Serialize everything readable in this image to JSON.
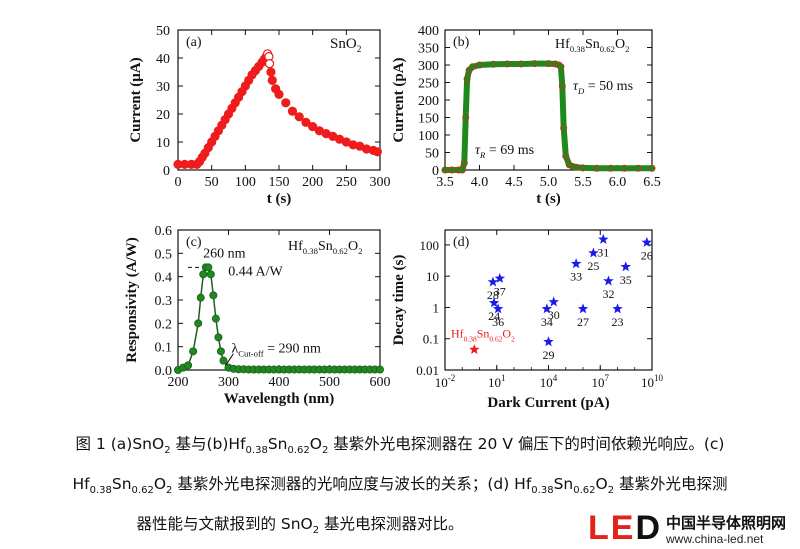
{
  "colors": {
    "red": "#ee1c1c",
    "green": "#1e8a1e",
    "darkgreen": "#1b5e20",
    "blue": "#1a1aee",
    "logo_red": "#e2231a"
  },
  "chart_data": [
    {
      "id": "a",
      "type": "scatter",
      "panel_label": "(a)",
      "series_label": "SnO2",
      "xlabel": "t (s)",
      "ylabel": "Current (μA)",
      "xlim": [
        0,
        300
      ],
      "ylim": [
        0,
        50
      ],
      "xticks": [
        0,
        50,
        100,
        150,
        200,
        250,
        300
      ],
      "yticks": [
        0,
        10,
        20,
        30,
        40,
        50
      ],
      "series": [
        {
          "color": "red",
          "x": [
            0,
            10,
            20,
            28,
            32,
            36,
            40,
            45,
            50,
            55,
            60,
            65,
            70,
            75,
            80,
            85,
            90,
            95,
            100,
            105,
            110,
            115,
            120,
            125,
            128,
            131,
            133,
            135,
            136,
            138,
            140,
            145,
            150,
            160,
            170,
            180,
            190,
            200,
            210,
            220,
            230,
            240,
            250,
            260,
            270,
            280,
            290,
            296
          ],
          "y": [
            2,
            2,
            2,
            2,
            3,
            4.5,
            6,
            8,
            10,
            12,
            14,
            16,
            18,
            20,
            22,
            24,
            26,
            28,
            30,
            32,
            34,
            35.5,
            37,
            38.5,
            39.5,
            40.5,
            41.5,
            40.5,
            38,
            35,
            32,
            29,
            27,
            24,
            21,
            19,
            17,
            15.5,
            14,
            13,
            12,
            11,
            10,
            9,
            8.5,
            7.5,
            7,
            6.5
          ]
        }
      ]
    },
    {
      "id": "b",
      "type": "scatter",
      "panel_label": "(b)",
      "series_label": "Hf0.38Sn0.62O2",
      "annotations": [
        "τD = 50 ms",
        "τR = 69 ms"
      ],
      "xlabel": "t (s)",
      "ylabel": "Current (pA)",
      "xlim": [
        3.5,
        6.5
      ],
      "ylim": [
        0,
        400
      ],
      "xticks": [
        3.5,
        4.0,
        4.5,
        5.0,
        5.5,
        6.0,
        6.5
      ],
      "yticks": [
        0,
        50,
        100,
        150,
        200,
        250,
        300,
        350,
        400
      ],
      "series": [
        {
          "color": "green",
          "x": [
            3.5,
            3.6,
            3.7,
            3.75,
            3.78,
            3.8,
            3.82,
            3.85,
            3.9,
            4.0,
            4.2,
            4.4,
            4.6,
            4.8,
            5.0,
            5.1,
            5.15,
            5.18,
            5.2,
            5.22,
            5.25,
            5.3,
            5.35,
            5.4,
            5.5,
            5.7,
            5.9,
            6.1,
            6.3,
            6.5
          ],
          "y": [
            0,
            0,
            0,
            0,
            20,
            150,
            260,
            285,
            295,
            300,
            302,
            303,
            303,
            304,
            304,
            303,
            300,
            295,
            240,
            120,
            40,
            15,
            10,
            8,
            6,
            5,
            5,
            5,
            5,
            5
          ]
        }
      ]
    },
    {
      "id": "c",
      "type": "line",
      "panel_label": "(c)",
      "series_label": "Hf0.38Sn0.62O2",
      "annotations": [
        "260 nm",
        "0.44 A/W",
        "λCut-off = 290 nm"
      ],
      "xlabel": "Wavelength (nm)",
      "ylabel": "Responsivity (A/W)",
      "xlim": [
        200,
        600
      ],
      "ylim": [
        0,
        0.6
      ],
      "xticks": [
        200,
        300,
        400,
        500,
        600
      ],
      "yticks": [
        0.0,
        0.1,
        0.2,
        0.3,
        0.4,
        0.5,
        0.6
      ],
      "series": [
        {
          "color": "green",
          "x": [
            200,
            210,
            220,
            230,
            240,
            245,
            250,
            255,
            260,
            265,
            270,
            275,
            280,
            285,
            290,
            300,
            310,
            320,
            330,
            340,
            350,
            360,
            370,
            380,
            390,
            400,
            410,
            420,
            430,
            440,
            450,
            460,
            470,
            480,
            490,
            500,
            510,
            520,
            530,
            540,
            550,
            560,
            570,
            580,
            590,
            600
          ],
          "y": [
            0.0,
            0.01,
            0.02,
            0.08,
            0.2,
            0.31,
            0.41,
            0.44,
            0.44,
            0.41,
            0.32,
            0.22,
            0.14,
            0.08,
            0.04,
            0.01,
            0.005,
            0.003,
            0.003,
            0.002,
            0.002,
            0.002,
            0.002,
            0.002,
            0.002,
            0.002,
            0.002,
            0.002,
            0.002,
            0.002,
            0.002,
            0.002,
            0.002,
            0.002,
            0.002,
            0.002,
            0.002,
            0.002,
            0.002,
            0.002,
            0.002,
            0.002,
            0.002,
            0.002,
            0.002,
            0.002
          ]
        }
      ]
    },
    {
      "id": "d",
      "type": "scatter",
      "panel_label": "(d)",
      "xlabel": "Dark Current (pA)",
      "ylabel": "Decay time (s)",
      "xscale": "log",
      "yscale": "log",
      "xlim": [
        0.01,
        10000000000
      ],
      "ylim": [
        0.01,
        300
      ],
      "xtick_labels": [
        "10-2",
        "101",
        "104",
        "107",
        "1010"
      ],
      "ytick_labels": [
        "0.01",
        "0.1",
        "1",
        "10",
        "100"
      ],
      "points": [
        {
          "label": "28",
          "x": 6,
          "y": 6.5,
          "color": "blue"
        },
        {
          "label": "37",
          "x": 15,
          "y": 8.5,
          "color": "blue"
        },
        {
          "label": "24",
          "x": 7,
          "y": 1.4,
          "color": "blue"
        },
        {
          "label": "36",
          "x": 12,
          "y": 0.9,
          "color": "blue"
        },
        {
          "label": "34",
          "x": 8000,
          "y": 0.9,
          "color": "blue"
        },
        {
          "label": "30",
          "x": 20000,
          "y": 1.5,
          "color": "blue"
        },
        {
          "label": "29",
          "x": 10000,
          "y": 0.08,
          "color": "blue"
        },
        {
          "label": "33",
          "x": 400000,
          "y": 25,
          "color": "blue"
        },
        {
          "label": "27",
          "x": 1000000,
          "y": 0.9,
          "color": "blue"
        },
        {
          "label": "25",
          "x": 4000000,
          "y": 55,
          "color": "blue"
        },
        {
          "label": "31",
          "x": 15000000,
          "y": 150,
          "color": "blue"
        },
        {
          "label": "32",
          "x": 30000000,
          "y": 7,
          "color": "blue"
        },
        {
          "label": "23",
          "x": 100000000,
          "y": 0.9,
          "color": "blue"
        },
        {
          "label": "35",
          "x": 300000000,
          "y": 20,
          "color": "blue"
        },
        {
          "label": "26",
          "x": 5000000000,
          "y": 120,
          "color": "blue"
        },
        {
          "label": "Hf0.38Sn0.62O2",
          "x": 0.5,
          "y": 0.045,
          "color": "red"
        }
      ]
    }
  ],
  "caption": {
    "line1": [
      "图 1 (a)SnO",
      "2",
      " 基与(b)Hf",
      "0.38",
      "Sn",
      "0.62",
      "O",
      "2",
      " 基紫外光电探测器在 20 V 偏压下的时间依赖光响应。(c)"
    ],
    "line2": [
      "Hf",
      "0.38",
      "Sn",
      "0.62",
      "O",
      "2",
      " 基紫外光电探测器的光响应度与波长的关系；(d) Hf",
      "0.38",
      "Sn",
      "0.62",
      "O",
      "2",
      " 基紫外光电探测"
    ],
    "line3": [
      "器性能与文献报到的 SnO",
      "2",
      " 基光电探测器对比。"
    ]
  },
  "logo": {
    "mark_l": "L",
    "mark_e": "E",
    "mark_d": "D",
    "name": "中国半导体照明网",
    "url": "www.china-led.net"
  }
}
